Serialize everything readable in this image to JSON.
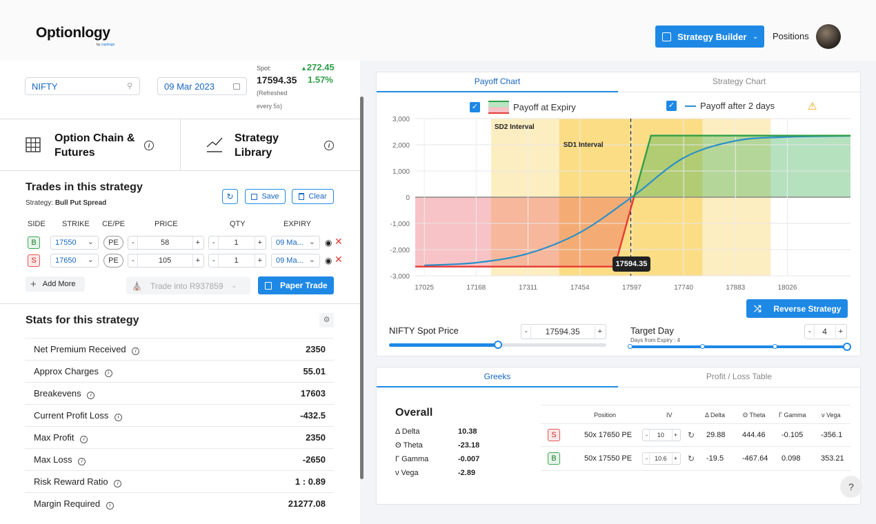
{
  "header": {
    "logo": "Optionlogy",
    "logo_by": "by ",
    "logo_brand": "capitsign",
    "strategy_builder": "Strategy Builder",
    "positions": "Positions"
  },
  "search": {
    "symbol": "NIFTY",
    "date": "09 Mar 2023"
  },
  "spot": {
    "label": "Spot:",
    "value": "17594.35",
    "refresh": "(Refreshed",
    "refresh2": "every 5s)",
    "change": "272.45",
    "change_pct": "1.57%",
    "color": "#2e9e47"
  },
  "nav": {
    "option_chain_1": "Option Chain &",
    "option_chain_2": "Futures",
    "library_1": "Strategy",
    "library_2": "Library"
  },
  "trades": {
    "title": "Trades in this strategy",
    "strategy_label": "Strategy:",
    "strategy_name": "Bull Put Spread",
    "save": "Save",
    "clear": "Clear",
    "columns": {
      "side": "SIDE",
      "strike": "STRIKE",
      "cepe": "CE/PE",
      "price": "PRICE",
      "qty": "QTY",
      "expiry": "EXPIRY"
    },
    "rows": [
      {
        "side": "B",
        "strike": "17550",
        "type": "PE",
        "price": "58",
        "qty": "1",
        "expiry": "09 Ma..."
      },
      {
        "side": "S",
        "strike": "17650",
        "type": "PE",
        "price": "105",
        "qty": "1",
        "expiry": "09 Ma..."
      }
    ],
    "add_more": "Add More",
    "trade_into": "Trade into R937859",
    "paper_trade": "Paper Trade"
  },
  "stats": {
    "title": "Stats for this strategy",
    "rows": [
      {
        "label": "Net Premium Received",
        "value": "2350"
      },
      {
        "label": "Approx Charges",
        "value": "55.01"
      },
      {
        "label": "Breakevens",
        "value": "17603"
      },
      {
        "label": "Current Profit Loss",
        "value": "-432.5"
      },
      {
        "label": "Max Profit",
        "value": "2350"
      },
      {
        "label": "Max Loss",
        "value": "-2650"
      },
      {
        "label": "Risk Reward Ratio",
        "value": "1 : 0.89"
      },
      {
        "label": "Margin Required",
        "value": "21277.08"
      }
    ]
  },
  "chart_tabs": {
    "payoff": "Payoff Chart",
    "strategy": "Strategy Chart"
  },
  "chart_data": {
    "type": "line",
    "series": [
      {
        "name": "Payoff at Expiry",
        "color": "#e53935",
        "x": [
          17000,
          17550,
          17650,
          18200
        ],
        "y": [
          -2650,
          -2650,
          2350,
          2350
        ]
      },
      {
        "name": "Payoff after 2 days",
        "color": "#2a8fc7",
        "x": [
          17025,
          17168,
          17311,
          17454,
          17597,
          17740,
          17883,
          18026,
          18200
        ],
        "y": [
          -2600,
          -2500,
          -2150,
          -1350,
          0,
          1500,
          2150,
          2300,
          2340
        ]
      }
    ],
    "x_ticks": [
      17025,
      17168,
      17311,
      17454,
      17597,
      17740,
      17883,
      18026
    ],
    "y_ticks": [
      3000,
      2000,
      1000,
      0,
      -1000,
      -2000,
      -3000
    ],
    "y_tick_labels": [
      "3,000",
      "2,000",
      "1,000",
      "0",
      "-1,000",
      "-2,000",
      "-3,000"
    ],
    "xlim": [
      17000,
      18200
    ],
    "ylim": [
      -3000,
      3000
    ],
    "spot": 17594.35,
    "spot_label": "17594.35",
    "sd1": {
      "label": "SD1 Interval",
      "range": [
        17397,
        17792
      ]
    },
    "sd2": {
      "label": "SD2 Interval",
      "range": [
        17209,
        17980
      ]
    },
    "grid": true,
    "legend": "top"
  },
  "controls": {
    "reverse": "Reverse Strategy",
    "spot_label": "NIFTY Spot Price",
    "spot_value": "17594.35",
    "spot_slider": 0.5,
    "target_label": "Target Day",
    "target_sub": "Days from Expiry : 4",
    "target_value": "4",
    "target_slider": 1.0
  },
  "greeks": {
    "tab_greeks": "Greeks",
    "tab_pl": "Profit / Loss Table",
    "overall": "Overall",
    "summary": [
      {
        "label": "Δ Delta",
        "value": "10.38"
      },
      {
        "label": "Θ Theta",
        "value": "-23.18"
      },
      {
        "label": "Γ Gamma",
        "value": "-0.007"
      },
      {
        "label": "ν Vega",
        "value": "-2.89"
      }
    ],
    "headers": {
      "position": "Position",
      "iv": "IV",
      "delta": "Δ Delta",
      "theta": "Θ Theta",
      "gamma": "Γ Gamma",
      "vega": "ν Vega"
    },
    "rows": [
      {
        "side": "S",
        "position": "50x 17650 PE",
        "iv": "10",
        "delta": "29.88",
        "theta": "444.46",
        "gamma": "-0.105",
        "vega": "-356.1"
      },
      {
        "side": "B",
        "position": "50x 17550 PE",
        "iv": "10.6",
        "delta": "-19.5",
        "theta": "-467.64",
        "gamma": "0.098",
        "vega": "353.21"
      }
    ]
  },
  "help": "?"
}
